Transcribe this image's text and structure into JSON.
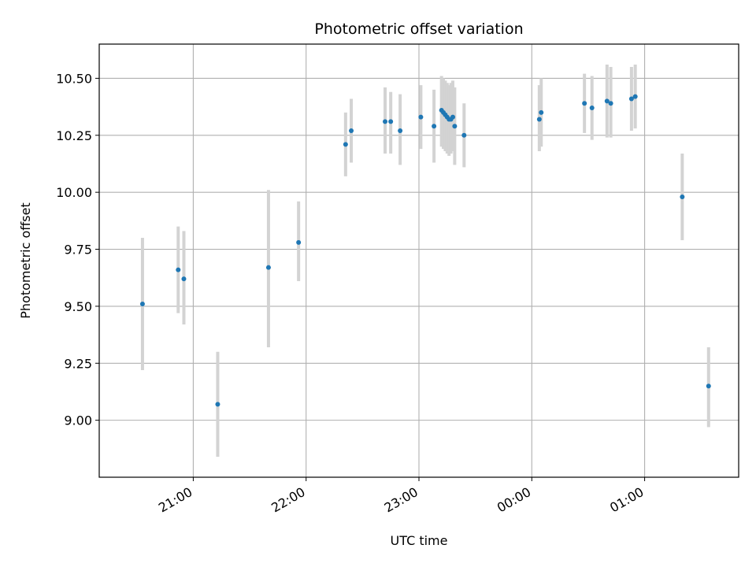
{
  "chart_data": {
    "type": "scatter",
    "title": "Photometric offset variation",
    "xlabel": "UTC time",
    "ylabel": "Photometric offset",
    "x_ticks": [
      "21:00",
      "22:00",
      "23:00",
      "00:00",
      "01:00"
    ],
    "x_tick_times": [
      "2000-01-01T21:00",
      "2000-01-01T22:00",
      "2000-01-01T23:00",
      "2000-01-02T00:00",
      "2000-01-02T01:00"
    ],
    "xlim": [
      "2000-01-01T20:10",
      "2000-01-02T01:50"
    ],
    "y_ticks": [
      "9.00",
      "9.25",
      "9.50",
      "9.75",
      "10.00",
      "10.25",
      "10.50"
    ],
    "ylim": [
      8.75,
      10.65
    ],
    "grid": true,
    "colors": {
      "marker": "#1f77b4",
      "errorbar": "#d3d3d3",
      "grid": "#b0b0b0"
    },
    "series": [
      {
        "points": [
          {
            "t": "2000-01-01T20:33",
            "y": 9.51,
            "lo": 9.22,
            "hi": 9.8
          },
          {
            "t": "2000-01-01T20:52",
            "y": 9.66,
            "lo": 9.47,
            "hi": 9.85
          },
          {
            "t": "2000-01-01T20:55",
            "y": 9.62,
            "lo": 9.42,
            "hi": 9.83
          },
          {
            "t": "2000-01-01T21:13",
            "y": 9.07,
            "lo": 8.84,
            "hi": 9.3
          },
          {
            "t": "2000-01-01T21:40",
            "y": 9.67,
            "lo": 9.32,
            "hi": 10.01
          },
          {
            "t": "2000-01-01T21:56",
            "y": 9.78,
            "lo": 9.61,
            "hi": 9.96
          },
          {
            "t": "2000-01-01T22:21",
            "y": 10.21,
            "lo": 10.07,
            "hi": 10.35
          },
          {
            "t": "2000-01-01T22:24",
            "y": 10.27,
            "lo": 10.13,
            "hi": 10.41
          },
          {
            "t": "2000-01-01T22:42",
            "y": 10.31,
            "lo": 10.17,
            "hi": 10.46
          },
          {
            "t": "2000-01-01T22:45",
            "y": 10.31,
            "lo": 10.17,
            "hi": 10.44
          },
          {
            "t": "2000-01-01T22:50",
            "y": 10.27,
            "lo": 10.12,
            "hi": 10.43
          },
          {
            "t": "2000-01-01T23:01",
            "y": 10.33,
            "lo": 10.19,
            "hi": 10.47
          },
          {
            "t": "2000-01-01T23:08",
            "y": 10.29,
            "lo": 10.13,
            "hi": 10.45
          },
          {
            "t": "2000-01-01T23:12",
            "y": 10.36,
            "lo": 10.2,
            "hi": 10.51
          },
          {
            "t": "2000-01-01T23:13",
            "y": 10.35,
            "lo": 10.19,
            "hi": 10.5
          },
          {
            "t": "2000-01-01T23:14",
            "y": 10.34,
            "lo": 10.18,
            "hi": 10.49
          },
          {
            "t": "2000-01-01T23:15",
            "y": 10.33,
            "lo": 10.17,
            "hi": 10.48
          },
          {
            "t": "2000-01-01T23:16",
            "y": 10.32,
            "lo": 10.16,
            "hi": 10.47
          },
          {
            "t": "2000-01-01T23:17",
            "y": 10.32,
            "lo": 10.17,
            "hi": 10.48
          },
          {
            "t": "2000-01-01T23:18",
            "y": 10.33,
            "lo": 10.18,
            "hi": 10.49
          },
          {
            "t": "2000-01-01T23:19",
            "y": 10.29,
            "lo": 10.12,
            "hi": 10.46
          },
          {
            "t": "2000-01-01T23:24",
            "y": 10.25,
            "lo": 10.11,
            "hi": 10.39
          },
          {
            "t": "2000-01-02T00:04",
            "y": 10.32,
            "lo": 10.18,
            "hi": 10.47
          },
          {
            "t": "2000-01-02T00:05",
            "y": 10.35,
            "lo": 10.2,
            "hi": 10.5
          },
          {
            "t": "2000-01-02T00:28",
            "y": 10.39,
            "lo": 10.26,
            "hi": 10.52
          },
          {
            "t": "2000-01-02T00:32",
            "y": 10.37,
            "lo": 10.23,
            "hi": 10.51
          },
          {
            "t": "2000-01-02T00:40",
            "y": 10.4,
            "lo": 10.24,
            "hi": 10.56
          },
          {
            "t": "2000-01-02T00:42",
            "y": 10.39,
            "lo": 10.24,
            "hi": 10.55
          },
          {
            "t": "2000-01-02T00:53",
            "y": 10.41,
            "lo": 10.27,
            "hi": 10.55
          },
          {
            "t": "2000-01-02T00:55",
            "y": 10.42,
            "lo": 10.28,
            "hi": 10.56
          },
          {
            "t": "2000-01-02T01:20",
            "y": 9.98,
            "lo": 9.79,
            "hi": 10.17
          },
          {
            "t": "2000-01-02T01:34",
            "y": 9.15,
            "lo": 8.97,
            "hi": 9.32
          }
        ]
      }
    ]
  }
}
